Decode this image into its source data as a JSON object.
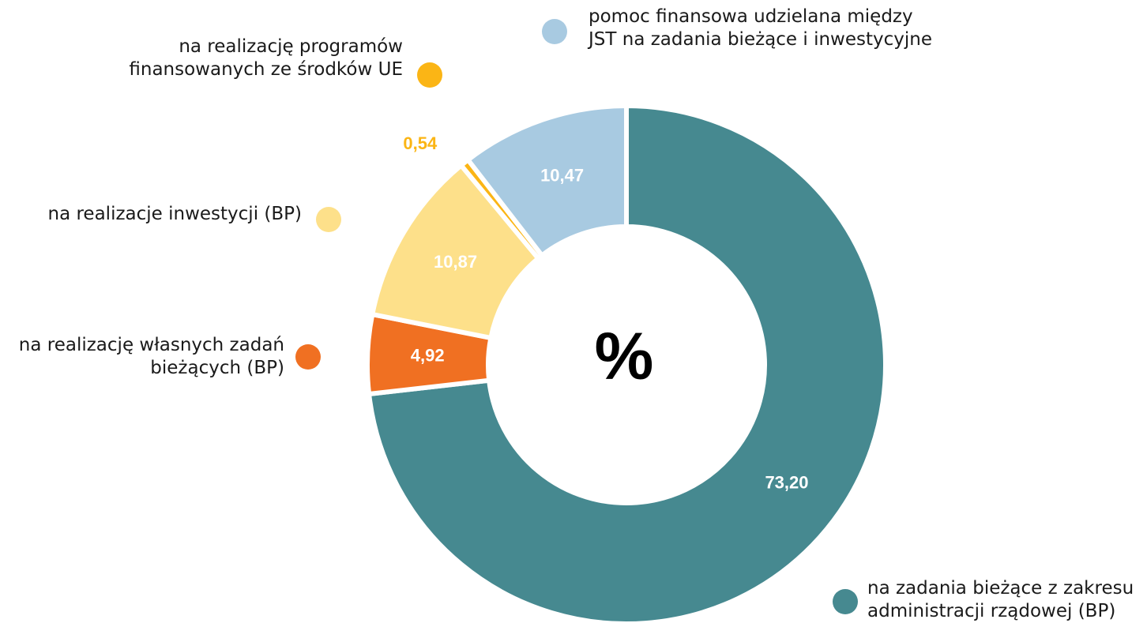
{
  "chart_data": {
    "type": "donut",
    "center_label": "%",
    "categories": [
      "na zadania bieżące z zakresu\nadministracji rządowej (BP)",
      "na realizację własnych zadań\nbieżących (BP)",
      "na realizacje inwestycji (BP)",
      "na realizację programów\nfinansowanych ze środków UE",
      "pomoc finansowa udzielana między\nJST na zadania bieżące i inwestycyjne"
    ],
    "values": [
      73.2,
      4.92,
      10.87,
      0.54,
      10.47
    ],
    "value_labels": [
      "73,20",
      "4,92",
      "10,87",
      "0,54",
      "10,47"
    ],
    "colors": [
      "#468990",
      "#f07022",
      "#fde08a",
      "#fbb515",
      "#a8cae1"
    ]
  }
}
